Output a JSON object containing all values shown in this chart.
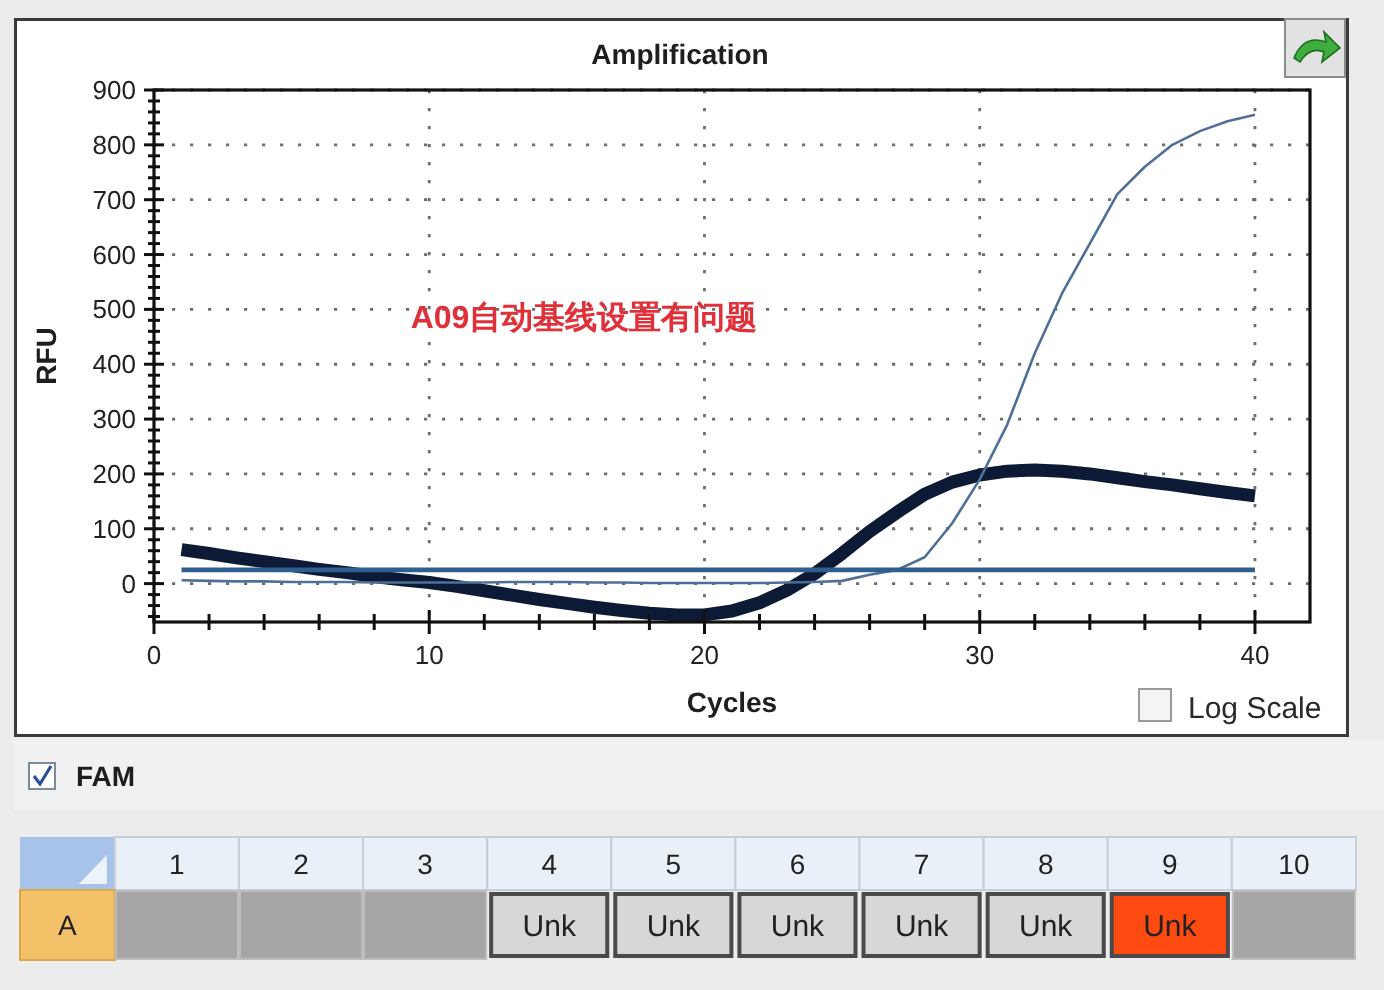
{
  "chart_data": [
    {
      "type": "line",
      "title": "Amplification",
      "xlabel": "Cycles",
      "ylabel": "RFU",
      "xlim": [
        0,
        42
      ],
      "ylim": [
        -70,
        900
      ],
      "xticks": [
        0,
        {
          "value": 2,
          "label": null
        },
        {
          "value": 4,
          "label": null
        },
        {
          "value": 6,
          "label": null
        },
        {
          "value": 8,
          "label": null
        },
        10,
        {
          "value": 12,
          "label": null
        },
        {
          "value": 14,
          "label": null
        },
        {
          "value": 16,
          "label": null
        },
        {
          "value": 18,
          "label": null
        },
        20,
        {
          "value": 22,
          "label": null
        },
        {
          "value": 24,
          "label": null
        },
        {
          "value": 26,
          "label": null
        },
        {
          "value": 28,
          "label": null
        },
        30,
        {
          "value": 32,
          "label": null
        },
        {
          "value": 34,
          "label": null
        },
        {
          "value": 36,
          "label": null
        },
        {
          "value": 38,
          "label": null
        },
        40
      ],
      "yticks": [
        {
          "value": -60,
          "label": null
        },
        {
          "value": -40,
          "label": null
        },
        {
          "value": -20,
          "label": null
        },
        0,
        {
          "value": 20,
          "label": null
        },
        {
          "value": 40,
          "label": null
        },
        {
          "value": 60,
          "label": null
        },
        {
          "value": 80,
          "label": null
        },
        100,
        {
          "value": 120,
          "label": null
        },
        {
          "value": 140,
          "label": null
        },
        {
          "value": 160,
          "label": null
        },
        {
          "value": 180,
          "label": null
        },
        200,
        {
          "value": 220,
          "label": null
        },
        {
          "value": 240,
          "label": null
        },
        {
          "value": 260,
          "label": null
        },
        {
          "value": 280,
          "label": null
        },
        300,
        {
          "value": 320,
          "label": null
        },
        {
          "value": 340,
          "label": null
        },
        {
          "value": 360,
          "label": null
        },
        {
          "value": 380,
          "label": null
        },
        400,
        {
          "value": 420,
          "label": null
        },
        {
          "value": 440,
          "label": null
        },
        {
          "value": 460,
          "label": null
        },
        {
          "value": 480,
          "label": null
        },
        500,
        {
          "value": 520,
          "label": null
        },
        {
          "value": 540,
          "label": null
        },
        {
          "value": 560,
          "label": null
        },
        {
          "value": 580,
          "label": null
        },
        600,
        {
          "value": 620,
          "label": null
        },
        {
          "value": 640,
          "label": null
        },
        {
          "value": 660,
          "label": null
        },
        {
          "value": 680,
          "label": null
        },
        700,
        {
          "value": 720,
          "label": null
        },
        {
          "value": 740,
          "label": null
        },
        {
          "value": 760,
          "label": null
        },
        {
          "value": 780,
          "label": null
        },
        800,
        {
          "value": 820,
          "label": null
        },
        {
          "value": 840,
          "label": null
        },
        {
          "value": 860,
          "label": null
        },
        {
          "value": 880,
          "label": null
        },
        900
      ],
      "grid": true,
      "series": [
        {
          "color": "#0c1a35",
          "x": [
            1,
            2,
            3,
            4,
            5,
            6,
            7,
            8,
            9,
            10,
            11,
            12,
            13,
            14,
            15,
            16,
            17,
            18,
            19,
            20,
            21,
            22,
            23,
            24,
            25,
            26,
            27,
            28,
            29,
            30,
            31,
            32,
            33,
            34,
            35,
            36,
            37,
            38,
            39,
            40
          ],
          "values": [
            62,
            55,
            47,
            40,
            33,
            26,
            20,
            13,
            7,
            2,
            -5,
            -13,
            -21,
            -29,
            -36,
            -43,
            -49,
            -54,
            -57,
            -57,
            -50,
            -35,
            -12,
            18,
            55,
            95,
            130,
            163,
            185,
            198,
            205,
            207,
            205,
            200,
            193,
            186,
            180,
            173,
            166,
            160
          ]
        },
        {
          "color": "#4f7096",
          "x": [
            1,
            2,
            3,
            4,
            5,
            6,
            7,
            8,
            9,
            10,
            11,
            12,
            13,
            14,
            15,
            16,
            17,
            18,
            19,
            20,
            21,
            22,
            23,
            24,
            25,
            26,
            27,
            28,
            29,
            30,
            31,
            32,
            33,
            34,
            35,
            36,
            37,
            38,
            39,
            40
          ],
          "values": [
            6,
            5,
            4,
            4,
            3,
            3,
            3,
            2,
            2,
            2,
            2,
            2,
            3,
            3,
            3,
            2,
            2,
            1,
            1,
            1,
            1,
            1,
            2,
            3,
            5,
            16,
            25,
            48,
            110,
            190,
            290,
            420,
            530,
            620,
            710,
            760,
            800,
            825,
            843,
            855
          ]
        },
        {
          "color": "#2f5f8e",
          "x": [
            1,
            40
          ],
          "values": [
            25,
            25
          ]
        }
      ],
      "annotations": [
        "A09自动基线设置有问题",
        "Log Scale"
      ]
    },
    {
      "type": "heatmap",
      "title": "FAM",
      "categories": [
        "1",
        "2",
        "3",
        "4",
        "5",
        "6",
        "7",
        "8",
        "9",
        "10"
      ],
      "y_categories": [
        "A"
      ],
      "cells": [
        [
          null,
          null,
          null,
          null,
          null,
          null,
          null,
          null,
          null,
          null
        ]
      ],
      "cell_labels": [
        [
          null,
          null,
          null,
          "Unk",
          "Unk",
          "Unk",
          "Unk",
          "Unk",
          "Unk",
          null
        ]
      ],
      "colors": [
        "#a6a6a6",
        "#a6a6a6",
        "#a6a6a6",
        "#d7d7d7",
        "#d7d7d7",
        "#d7d7d7",
        "#d7d7d7",
        "#d7d7d7",
        "#ff4b12",
        "#a6a6a6"
      ]
    }
  ]
}
